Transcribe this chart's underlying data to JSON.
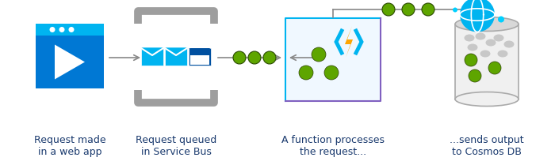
{
  "bg_color": "#ffffff",
  "labels": [
    "Request made\nin a web app",
    "Request queued\nin Service Bus",
    "A function processes\nthe request...",
    "...sends output\nto Cosmos DB"
  ],
  "label_color": "#1a3a6e",
  "label_fontsize": 9.0,
  "web_app_bg": "#0078d4",
  "web_app_bar": "#00b4f0",
  "service_bus_bracket": "#9e9e9e",
  "envelope_cyan": "#00b4f0",
  "envelope_dark_blue": "#0050a0",
  "envelope_white": "#e8f8ff",
  "func_box_border_left": "#00b4f0",
  "func_box_border_right": "#8060c0",
  "func_box_bg": "#f0f8ff",
  "func_bolt_yellow": "#ffa500",
  "func_bolt_blue": "#00b4f0",
  "green_dot_color": "#5ea500",
  "green_dot_outline": "#2a4a00",
  "cosmos_db_outline": "#aaaaaa",
  "cosmos_db_fill": "#f0f0f0",
  "cosmos_db_top": "#d8d8d8",
  "cosmos_globe_color": "#00b4f0",
  "feedback_line_color": "#888888",
  "figsize": [
    7.0,
    2.09
  ],
  "dpi": 100
}
